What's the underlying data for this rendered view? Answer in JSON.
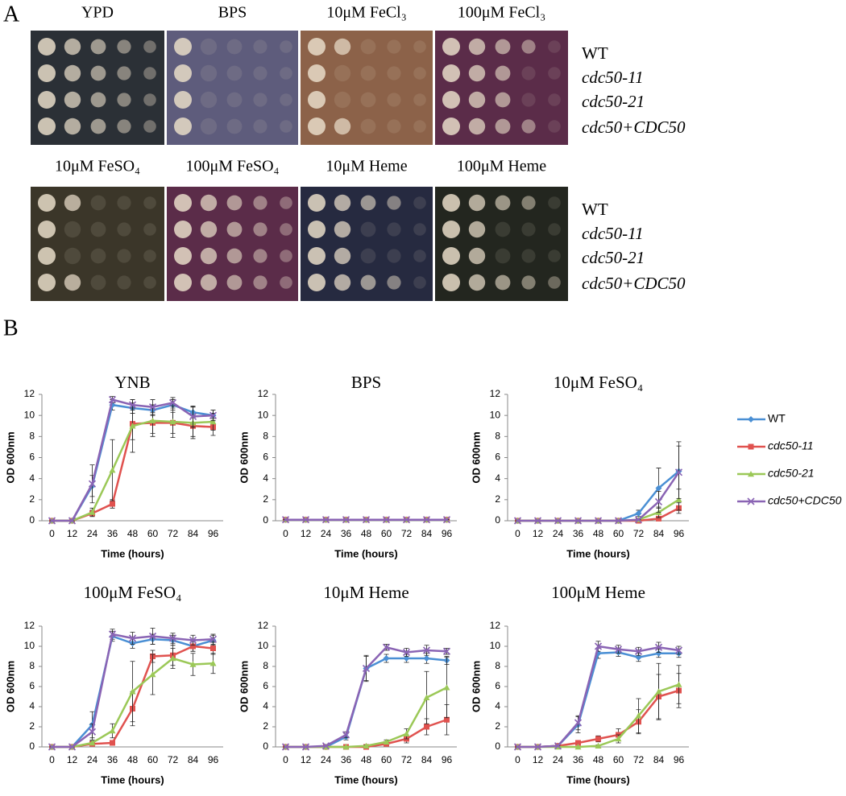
{
  "panel_a": {
    "label": "A",
    "rows": [
      {
        "plates": [
          "YPD",
          "BPS",
          "10μM FeCl₃",
          "100μM FeCl₃"
        ],
        "strains": [
          "WT",
          "cdc50-11",
          "cdc50-21",
          "cdc50+CDC50"
        ]
      },
      {
        "plates": [
          "10μM FeSO₄",
          "100μM FeSO₄",
          "10μM Heme",
          "100μM Heme"
        ],
        "strains": [
          "WT",
          "cdc50-11",
          "cdc50-21",
          "cdc50+CDC50"
        ]
      }
    ]
  },
  "panel_b": {
    "label": "B"
  },
  "chart_data": [
    {
      "type": "line",
      "title": "YNB",
      "x_label": "Time (hours)",
      "y_label": "OD 600nm",
      "categories": [
        "0",
        "12",
        "24",
        "36",
        "48",
        "60",
        "72",
        "84",
        "96"
      ],
      "ylim": [
        0,
        12
      ],
      "yticks": [
        0,
        2,
        4,
        6,
        8,
        10,
        12
      ],
      "series": [
        {
          "color": "#4a8fd4",
          "marker": "diamond",
          "values": [
            0,
            0,
            3.3,
            11.0,
            10.7,
            10.5,
            11.0,
            10.3,
            10.0
          ],
          "errors": [
            0,
            0,
            1,
            0.5,
            0.5,
            0.5,
            0.5,
            0.5,
            0.5
          ]
        },
        {
          "color": "#e0524f",
          "marker": "square",
          "values": [
            0,
            0,
            0.7,
            1.6,
            9.2,
            9.3,
            9.3,
            9.0,
            8.9
          ],
          "errors": [
            0,
            0,
            0.3,
            0.4,
            1.5,
            1,
            1,
            1,
            0.8
          ]
        },
        {
          "color": "#9bc857",
          "marker": "triangle",
          "values": [
            0,
            0,
            0.8,
            4.8,
            9.0,
            9.5,
            9.4,
            9.3,
            9.4
          ],
          "errors": [
            0,
            0,
            0.4,
            2.9,
            2.5,
            1.5,
            1.5,
            1.5,
            0.8
          ]
        },
        {
          "color": "#8a64b4",
          "marker": "x",
          "values": [
            0,
            0,
            3.5,
            11.5,
            11.0,
            10.8,
            11.2,
            9.9,
            10.0
          ],
          "errors": [
            0,
            0,
            1.8,
            0.3,
            0.5,
            0.7,
            0.5,
            1,
            0.5
          ]
        }
      ]
    },
    {
      "type": "line",
      "title": "BPS",
      "x_label": "Time (hours)",
      "y_label": "OD 600nm",
      "categories": [
        "0",
        "12",
        "24",
        "36",
        "48",
        "60",
        "72",
        "84",
        "96"
      ],
      "ylim": [
        0,
        12
      ],
      "yticks": [
        0,
        2,
        4,
        6,
        8,
        10,
        12
      ],
      "series": [
        {
          "color": "#4a8fd4",
          "marker": "diamond",
          "values": [
            0.1,
            0.1,
            0.1,
            0.1,
            0.1,
            0.1,
            0.1,
            0.1,
            0.1
          ],
          "errors": [
            0,
            0,
            0,
            0,
            0,
            0,
            0,
            0,
            0
          ]
        },
        {
          "color": "#e0524f",
          "marker": "square",
          "values": [
            0.1,
            0.1,
            0.1,
            0.1,
            0.1,
            0.1,
            0.1,
            0.1,
            0.1
          ],
          "errors": [
            0,
            0,
            0,
            0,
            0,
            0,
            0,
            0,
            0
          ]
        },
        {
          "color": "#9bc857",
          "marker": "triangle",
          "values": [
            0.1,
            0.1,
            0.1,
            0.1,
            0.1,
            0.1,
            0.1,
            0.1,
            0.1
          ],
          "errors": [
            0,
            0,
            0,
            0,
            0,
            0,
            0,
            0,
            0
          ]
        },
        {
          "color": "#8a64b4",
          "marker": "x",
          "values": [
            0.1,
            0.1,
            0.1,
            0.1,
            0.1,
            0.1,
            0.1,
            0.1,
            0.1
          ],
          "errors": [
            0,
            0,
            0,
            0,
            0,
            0,
            0,
            0,
            0
          ]
        }
      ]
    },
    {
      "type": "line",
      "title": "10μM FeSO₄",
      "x_label": "Time (hours)",
      "y_label": "OD 600nm",
      "categories": [
        "0",
        "12",
        "24",
        "36",
        "48",
        "60",
        "72",
        "84",
        "96"
      ],
      "ylim": [
        0,
        12
      ],
      "yticks": [
        0,
        2,
        4,
        6,
        8,
        10,
        12
      ],
      "series": [
        {
          "name": "WT",
          "color": "#4a8fd4",
          "marker": "diamond",
          "values": [
            0,
            0,
            0,
            0,
            0,
            0,
            0.7,
            3.1,
            4.7
          ],
          "errors": [
            0,
            0,
            0,
            0,
            0,
            0,
            0.3,
            1.9,
            2.8
          ]
        },
        {
          "name": "cdc50-11",
          "color": "#e0524f",
          "marker": "square",
          "values": [
            0,
            0,
            0,
            0,
            0,
            0,
            0,
            0.2,
            1.2
          ],
          "errors": [
            0,
            0,
            0,
            0,
            0,
            0,
            0,
            0.1,
            0.5
          ]
        },
        {
          "name": "cdc50-21",
          "color": "#9bc857",
          "marker": "triangle",
          "values": [
            0,
            0,
            0,
            0,
            0,
            0,
            0.1,
            0.8,
            2.0
          ],
          "errors": [
            0,
            0,
            0,
            0,
            0,
            0,
            0.1,
            0.5,
            1
          ]
        },
        {
          "name": "cdc50+CDC50",
          "color": "#8a64b4",
          "marker": "x",
          "values": [
            0,
            0,
            0,
            0,
            0,
            0,
            0.1,
            1.8,
            4.6
          ],
          "errors": [
            0,
            0,
            0,
            0,
            0,
            0,
            0,
            1,
            2.5
          ]
        }
      ]
    },
    {
      "type": "line",
      "title": "100μM FeSO₄",
      "x_label": "Time (hours)",
      "y_label": "OD 600nm",
      "categories": [
        "0",
        "12",
        "24",
        "36",
        "48",
        "60",
        "72",
        "84",
        "96"
      ],
      "ylim": [
        0,
        12
      ],
      "yticks": [
        0,
        2,
        4,
        6,
        8,
        10,
        12
      ],
      "series": [
        {
          "color": "#4a8fd4",
          "marker": "diamond",
          "values": [
            0,
            0,
            2.2,
            11.0,
            10.3,
            10.7,
            10.6,
            10.0,
            10.6
          ],
          "errors": [
            0,
            0,
            1.3,
            0.5,
            0.5,
            0.5,
            0.5,
            0.5,
            0.5
          ]
        },
        {
          "color": "#e0524f",
          "marker": "square",
          "values": [
            0,
            0,
            0.3,
            0.4,
            3.8,
            9.0,
            9.1,
            10.0,
            9.8
          ],
          "errors": [
            0,
            0,
            0.2,
            0.2,
            1.7,
            0.6,
            1,
            0.5,
            0.6
          ]
        },
        {
          "color": "#9bc857",
          "marker": "triangle",
          "values": [
            0,
            0,
            0.4,
            1.6,
            5.5,
            7.2,
            8.8,
            8.2,
            8.3
          ],
          "errors": [
            0,
            0,
            0.2,
            0.7,
            3,
            2,
            1,
            1.1,
            1
          ]
        },
        {
          "color": "#8a64b4",
          "marker": "x",
          "values": [
            0,
            0,
            1.5,
            11.2,
            10.8,
            11.0,
            10.8,
            10.6,
            10.7
          ],
          "errors": [
            0,
            0,
            0.8,
            0.5,
            0.6,
            0.8,
            0.5,
            0.5,
            0.5
          ]
        }
      ]
    },
    {
      "type": "line",
      "title": "10μM Heme",
      "x_label": "Time (hours)",
      "y_label": "OD 600nm",
      "categories": [
        "0",
        "12",
        "24",
        "36",
        "48",
        "60",
        "72",
        "84",
        "96"
      ],
      "ylim": [
        0,
        12
      ],
      "yticks": [
        0,
        2,
        4,
        6,
        8,
        10,
        12
      ],
      "series": [
        {
          "color": "#4a8fd4",
          "marker": "diamond",
          "values": [
            0,
            0,
            0,
            1.0,
            7.8,
            8.8,
            8.8,
            8.8,
            8.6
          ],
          "errors": [
            0,
            0,
            0,
            0.3,
            1.3,
            0.4,
            0.4,
            0.5,
            0.4
          ]
        },
        {
          "color": "#e0524f",
          "marker": "square",
          "values": [
            0,
            0,
            0,
            0,
            0,
            0.3,
            0.8,
            2.0,
            2.7
          ],
          "errors": [
            0,
            0,
            0,
            0,
            0,
            0.2,
            0.4,
            0.8,
            1.5
          ]
        },
        {
          "color": "#9bc857",
          "marker": "triangle",
          "values": [
            0,
            0,
            0,
            0,
            0.1,
            0.5,
            1.3,
            4.9,
            5.9
          ],
          "errors": [
            0,
            0,
            0,
            0,
            0.1,
            0.2,
            0.5,
            2.6,
            3
          ]
        },
        {
          "color": "#8a64b4",
          "marker": "x",
          "values": [
            0,
            0,
            0.1,
            1.2,
            7.8,
            9.9,
            9.4,
            9.6,
            9.5
          ],
          "errors": [
            0,
            0,
            0,
            0.3,
            1.2,
            0.3,
            0.4,
            0.5,
            0.3
          ]
        }
      ]
    },
    {
      "type": "line",
      "title": "100μM Heme",
      "x_label": "Time (hours)",
      "y_label": "OD 600nm",
      "categories": [
        "0",
        "12",
        "24",
        "36",
        "48",
        "60",
        "72",
        "84",
        "96"
      ],
      "ylim": [
        0,
        12
      ],
      "yticks": [
        0,
        2,
        4,
        6,
        8,
        10,
        12
      ],
      "series": [
        {
          "color": "#4a8fd4",
          "marker": "diamond",
          "values": [
            0,
            0,
            0.1,
            2.2,
            9.3,
            9.4,
            8.9,
            9.3,
            9.3
          ],
          "errors": [
            0,
            0,
            0,
            0.8,
            0.5,
            0.4,
            0.4,
            0.4,
            0.4
          ]
        },
        {
          "color": "#e0524f",
          "marker": "square",
          "values": [
            0,
            0,
            0.1,
            0.4,
            0.8,
            1.2,
            2.5,
            5.0,
            5.6
          ],
          "errors": [
            0,
            0,
            0,
            0.2,
            0.3,
            0.6,
            1.2,
            2.2,
            1.7
          ]
        },
        {
          "color": "#9bc857",
          "marker": "triangle",
          "values": [
            0,
            0,
            0,
            0,
            0.1,
            0.8,
            3.1,
            5.5,
            6.2
          ],
          "errors": [
            0,
            0,
            0,
            0,
            0.1,
            0.4,
            1.7,
            2.8,
            1.9
          ]
        },
        {
          "color": "#8a64b4",
          "marker": "x",
          "values": [
            0,
            0,
            0.1,
            2.4,
            10.0,
            9.7,
            9.5,
            9.9,
            9.6
          ],
          "errors": [
            0,
            0,
            0,
            0.7,
            0.5,
            0.4,
            0.4,
            0.5,
            0.4
          ]
        }
      ]
    }
  ]
}
